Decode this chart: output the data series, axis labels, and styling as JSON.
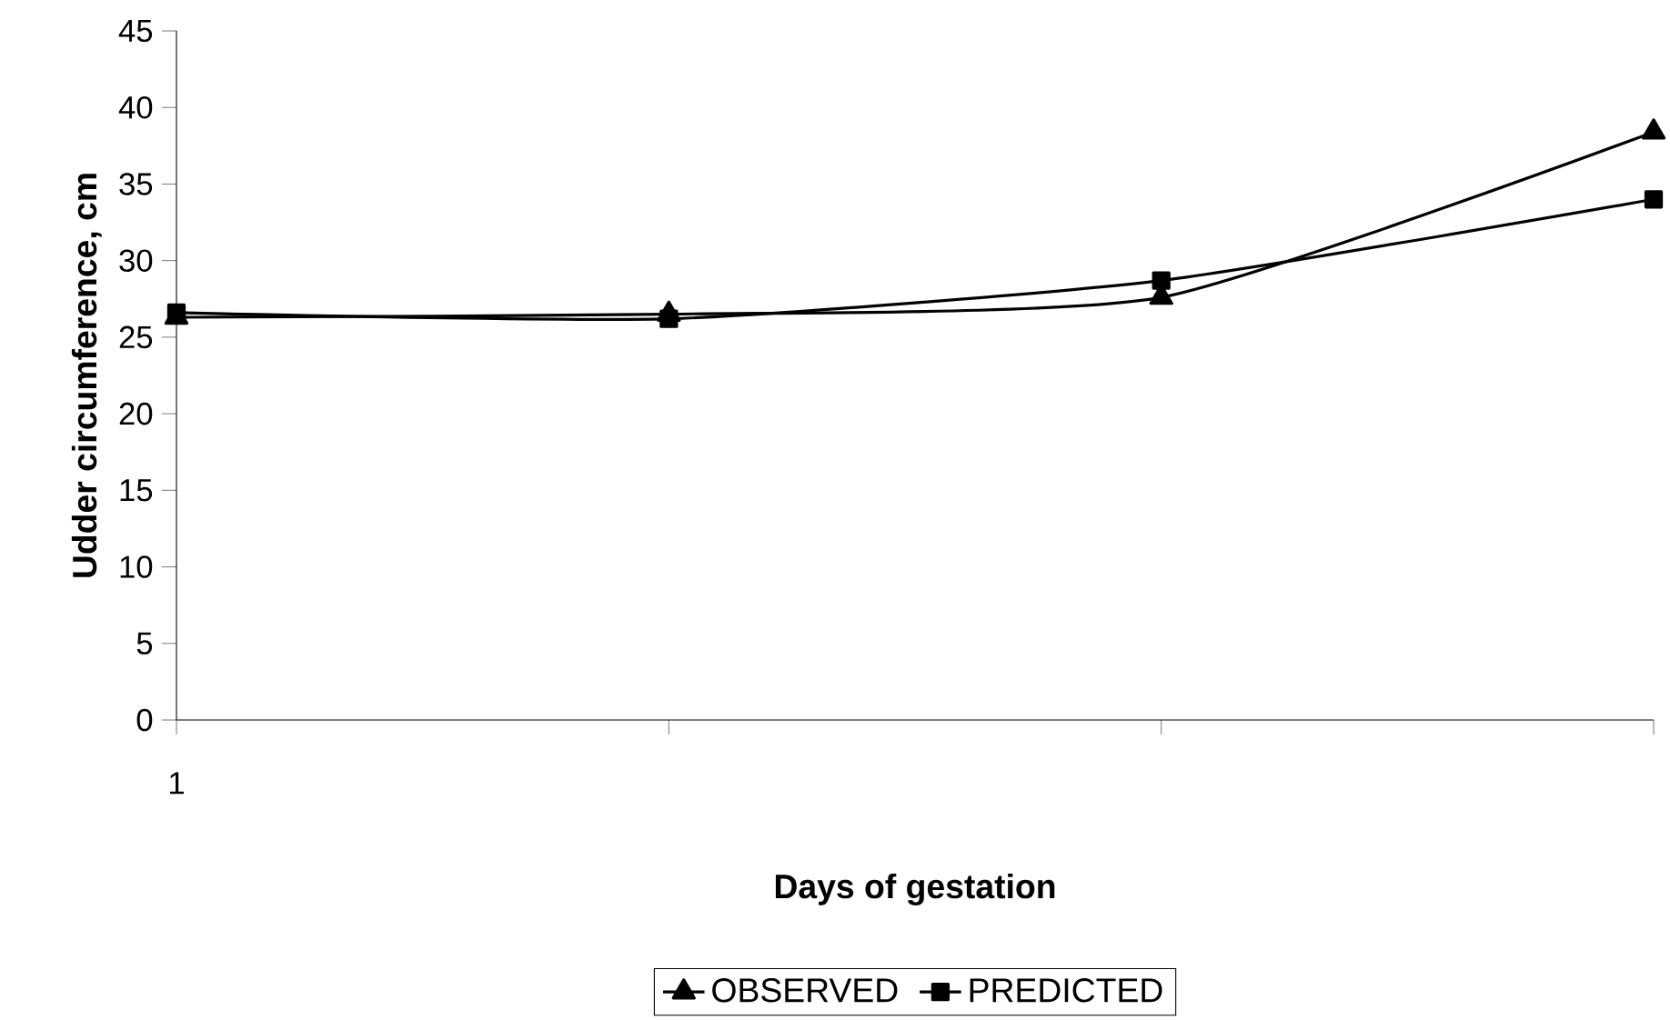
{
  "chart_data": {
    "type": "line",
    "xlabel": "Days of gestation",
    "ylabel": "Udder circumference, cm",
    "categories": [
      "1",
      null,
      null,
      null
    ],
    "series": [
      {
        "name": "OBSERVED",
        "color": "#000000",
        "marker": "triangle",
        "values": [
          26.3,
          26.5,
          27.6,
          38.4
        ]
      },
      {
        "name": "PREDICTED",
        "color": "#000000",
        "marker": "square",
        "values": [
          26.6,
          26.2,
          28.7,
          34.0
        ]
      }
    ],
    "ylim": [
      0,
      45
    ],
    "yticks": [
      0,
      5,
      10,
      15,
      20,
      25,
      30,
      35,
      40,
      45
    ],
    "legend": "bottom",
    "grid": false
  }
}
